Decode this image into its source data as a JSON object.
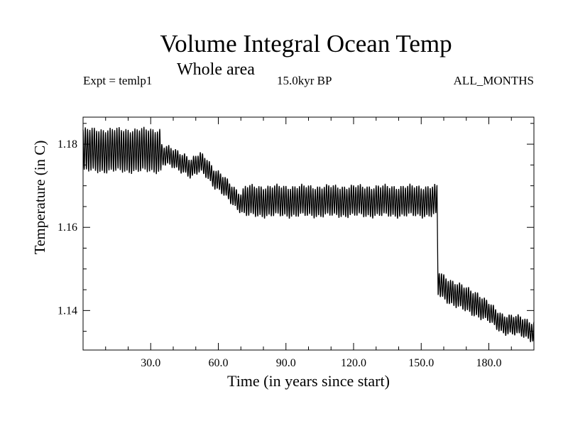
{
  "chart_data": {
    "type": "line",
    "title": "Volume Integral Ocean Temp",
    "subtitle": "Whole area",
    "annotations": {
      "experiment": "Expt = temlp1",
      "period": "15.0kyr BP",
      "months": "ALL_MONTHS"
    },
    "xlabel": "Time (in years since start)",
    "ylabel": "Temperature (in C)",
    "xlim": [
      0,
      200
    ],
    "ylim": [
      1.1305,
      1.1865
    ],
    "x_ticks": [
      30,
      60,
      90,
      120,
      150,
      180
    ],
    "x_tick_labels": [
      "30.0",
      "60.0",
      "90.0",
      "120.0",
      "150.0",
      "180.0"
    ],
    "y_ticks": [
      1.14,
      1.16,
      1.18
    ],
    "y_tick_labels": [
      "1.14",
      "1.16",
      "1.18"
    ],
    "grid": false,
    "seasonal_cycle": "annual oscillation, ~12 points per year",
    "series": [
      {
        "name": "Volume integral ocean temperature",
        "x": [
          0,
          5,
          10,
          15,
          20,
          25,
          30,
          34.5,
          35,
          40,
          45,
          48,
          52,
          55,
          58,
          62,
          66,
          70,
          72,
          75,
          80,
          90,
          100,
          110,
          120,
          130,
          140,
          150,
          157,
          157.5,
          160,
          165,
          170,
          175,
          180,
          183,
          186,
          190,
          195,
          200
        ],
        "mean": [
          1.1785,
          1.1785,
          1.1785,
          1.1785,
          1.1785,
          1.1785,
          1.1785,
          1.1785,
          1.1775,
          1.1765,
          1.1755,
          1.174,
          1.1755,
          1.1745,
          1.172,
          1.17,
          1.168,
          1.166,
          1.1663,
          1.1663,
          1.1663,
          1.1663,
          1.1663,
          1.1663,
          1.1663,
          1.1663,
          1.1663,
          1.1663,
          1.1663,
          1.1465,
          1.1455,
          1.144,
          1.1425,
          1.1415,
          1.1395,
          1.138,
          1.137,
          1.1365,
          1.136,
          1.135
        ],
        "half_amplitude": [
          0.005,
          0.005,
          0.005,
          0.005,
          0.005,
          0.005,
          0.005,
          0.005,
          0.0022,
          0.0022,
          0.0022,
          0.0022,
          0.0022,
          0.0022,
          0.0022,
          0.0022,
          0.0022,
          0.0022,
          0.0035,
          0.0035,
          0.0035,
          0.0035,
          0.0035,
          0.0035,
          0.0035,
          0.0035,
          0.0035,
          0.0035,
          0.0035,
          0.0028,
          0.0028,
          0.0028,
          0.0028,
          0.0028,
          0.0022,
          0.0022,
          0.0022,
          0.0022,
          0.0022,
          0.0022
        ]
      }
    ]
  }
}
